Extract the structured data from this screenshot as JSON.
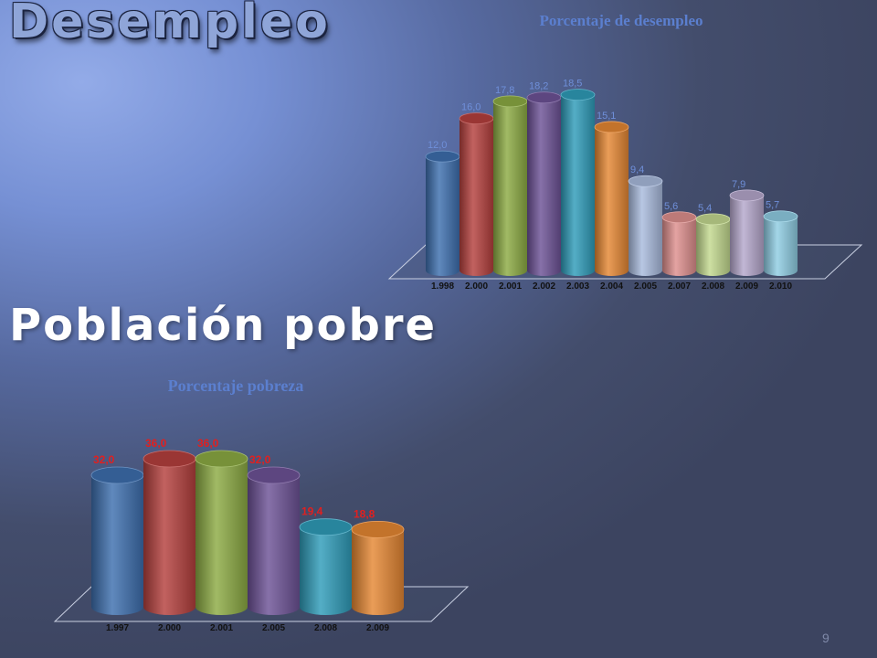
{
  "slide": {
    "title": "Desempleo",
    "subtitle": "Población pobre",
    "page_number": "9"
  },
  "chart_data": [
    {
      "type": "bar",
      "title": "Porcentaje de desempleo",
      "categories": [
        "1.998",
        "2.000",
        "2.001",
        "2.002",
        "2.003",
        "2.004",
        "2.005",
        "2.007",
        "2.008",
        "2.009",
        "2.010"
      ],
      "values": [
        12.0,
        16.0,
        17.8,
        18.2,
        18.5,
        15.1,
        9.4,
        5.6,
        5.4,
        7.9,
        5.7
      ],
      "data_labels": [
        "12,0",
        "16,0",
        "17,8",
        "18,2",
        "18,5",
        "15,1",
        "9,4",
        "5,6",
        "5,4",
        "7,9",
        "5,7"
      ],
      "colors": [
        "#3d6fae",
        "#b5403d",
        "#8cab43",
        "#6d5296",
        "#2f9cb9",
        "#e58733",
        "#a9bbdd",
        "#de8f8d",
        "#c3d98f",
        "#b5a7cc",
        "#8fcde3"
      ],
      "label_color": "#6f8fd9",
      "title_color": "#5b7fcf",
      "ylim": [
        0,
        20
      ],
      "style": "3d-cylinder",
      "grid": false,
      "legend": "none"
    },
    {
      "type": "bar",
      "title": "Porcentaje pobreza",
      "categories": [
        "1.997",
        "2.000",
        "2.001",
        "2.005",
        "2.008",
        "2.009"
      ],
      "values": [
        32.0,
        36.0,
        36.0,
        32.0,
        19.4,
        18.8
      ],
      "data_labels": [
        "32,0",
        "36,0",
        "36,0",
        "32,0",
        "19,4",
        "18,8"
      ],
      "colors": [
        "#3d6fae",
        "#b5403d",
        "#8cab43",
        "#6d5296",
        "#2f9cb9",
        "#e58733"
      ],
      "label_color": "#e02020",
      "title_color": "#5b7fcf",
      "ylim": [
        0,
        40
      ],
      "style": "3d-cylinder",
      "grid": false,
      "legend": "none"
    }
  ]
}
